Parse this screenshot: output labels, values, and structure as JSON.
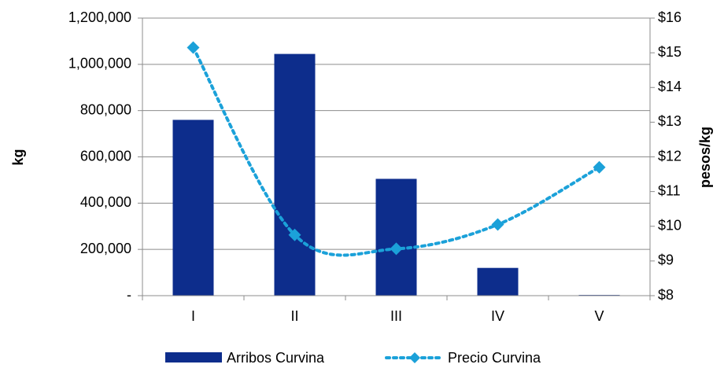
{
  "chart_data": {
    "type": "bar",
    "categories": [
      "I",
      "II",
      "III",
      "IV",
      "V"
    ],
    "series": [
      {
        "name": "Arribos Curvina",
        "kind": "bar",
        "axis": "left",
        "color": "#0D2D8C",
        "values": [
          760000,
          1045000,
          505000,
          120000,
          3000
        ]
      },
      {
        "name": "Precio Curvina",
        "kind": "line",
        "style": "dotted-with-diamond-markers",
        "axis": "right",
        "color": "#1BA1D9",
        "values": [
          15.15,
          9.75,
          9.35,
          10.05,
          11.7
        ]
      }
    ],
    "y_left": {
      "label": "kg",
      "ylim": [
        0,
        1200000
      ],
      "ticks": [
        {
          "value": 0,
          "label": "-"
        },
        {
          "value": 200000,
          "label": "200,000"
        },
        {
          "value": 400000,
          "label": "400,000"
        },
        {
          "value": 600000,
          "label": "600,000"
        },
        {
          "value": 800000,
          "label": "800,000"
        },
        {
          "value": 1000000,
          "label": "1,000,000"
        },
        {
          "value": 1200000,
          "label": "1,200,000"
        }
      ]
    },
    "y_right": {
      "label": "pesos/kg",
      "ylim": [
        8,
        16
      ],
      "ticks": [
        {
          "value": 8,
          "label": "$8"
        },
        {
          "value": 9,
          "label": "$9"
        },
        {
          "value": 10,
          "label": "$10"
        },
        {
          "value": 11,
          "label": "$11"
        },
        {
          "value": 12,
          "label": "$12"
        },
        {
          "value": 13,
          "label": "$13"
        },
        {
          "value": 14,
          "label": "$14"
        },
        {
          "value": 15,
          "label": "$15"
        },
        {
          "value": 16,
          "label": "$16"
        }
      ]
    },
    "grid": true,
    "legend": "bottom"
  }
}
